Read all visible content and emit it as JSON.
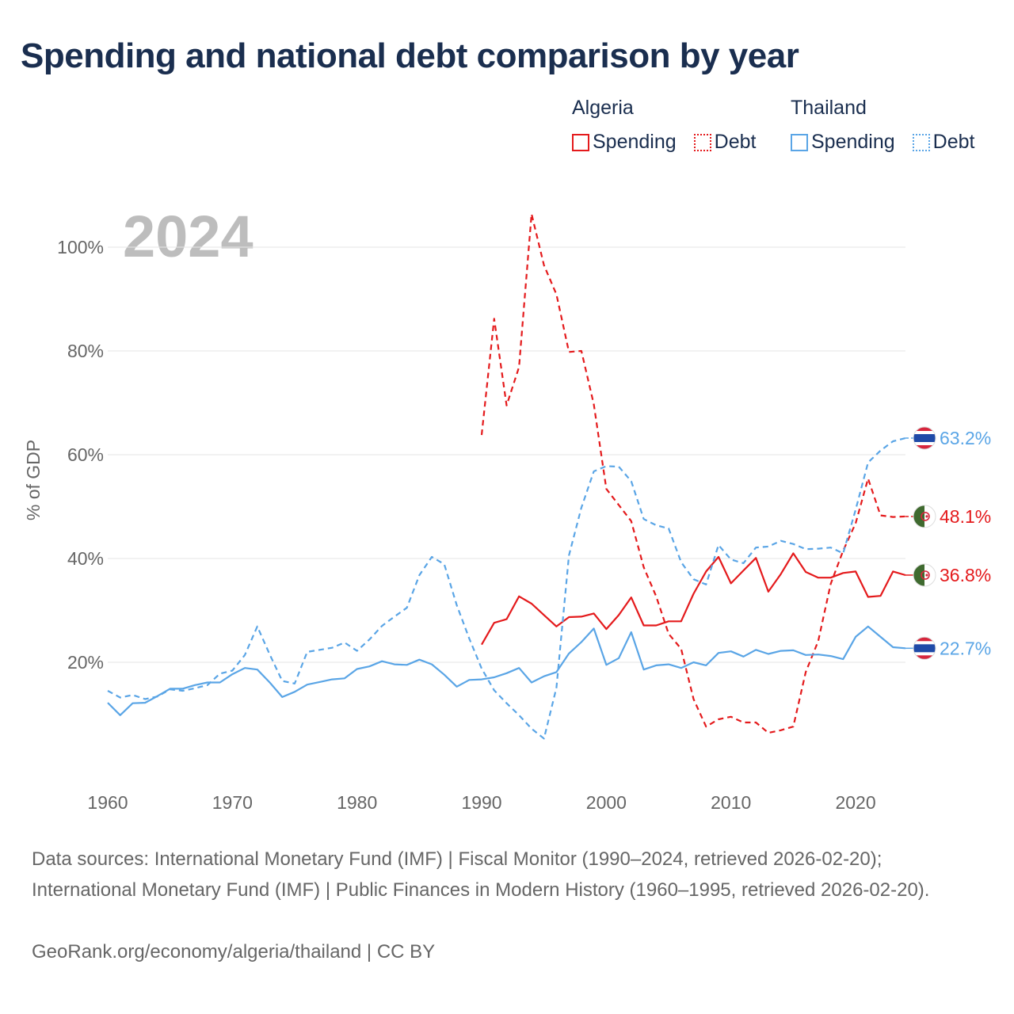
{
  "chart_data": {
    "type": "line",
    "title": "Spending and national debt comparison by year",
    "xlabel": "",
    "ylabel": "% of GDP",
    "year_watermark": "2024",
    "xlim": [
      1960,
      2024
    ],
    "ylim": [
      0,
      110
    ],
    "x_ticks": [
      1960,
      1970,
      1980,
      1990,
      2000,
      2010,
      2020
    ],
    "x_tick_labels": [
      "1960",
      "1970",
      "1980",
      "1990",
      "2000",
      "2010",
      "2020"
    ],
    "y_ticks": [
      20,
      40,
      60,
      80,
      100
    ],
    "y_tick_labels": [
      "20%",
      "40%",
      "60%",
      "80%",
      "100%"
    ],
    "grid": true,
    "legend": {
      "placement": "top-right",
      "groups": [
        {
          "country": "Algeria",
          "items": [
            {
              "label": "Spending",
              "style": "solid"
            },
            {
              "label": "Debt",
              "style": "dotted"
            }
          ]
        },
        {
          "country": "Thailand",
          "items": [
            {
              "label": "Spending",
              "style": "solid"
            },
            {
              "label": "Debt",
              "style": "dotted"
            }
          ]
        }
      ]
    },
    "series": [
      {
        "name": "Algeria Spending",
        "country": "Algeria",
        "measure": "Spending",
        "color": "#e41a1c",
        "dash": "solid",
        "x": [
          1990,
          1991,
          1992,
          1993,
          1994,
          1995,
          1996,
          1997,
          1998,
          1999,
          2000,
          2001,
          2002,
          2003,
          2004,
          2005,
          2006,
          2007,
          2008,
          2009,
          2010,
          2011,
          2012,
          2013,
          2014,
          2015,
          2016,
          2017,
          2018,
          2019,
          2020,
          2021,
          2022,
          2023,
          2024
        ],
        "values": [
          23.4,
          27.6,
          28.3,
          32.7,
          31.3,
          29.1,
          26.9,
          28.7,
          28.8,
          29.4,
          26.4,
          29.1,
          32.5,
          27.1,
          27.1,
          27.9,
          27.9,
          33.2,
          37.5,
          40.3,
          35.2,
          37.7,
          40.1,
          33.6,
          37.0,
          41.0,
          37.4,
          36.3,
          36.3,
          37.2,
          37.5,
          32.6,
          32.8,
          37.5,
          36.8
        ],
        "end_label": "36.8%"
      },
      {
        "name": "Algeria Debt",
        "country": "Algeria",
        "measure": "Debt",
        "color": "#e41a1c",
        "dash": "dashed",
        "x": [
          1990,
          1991,
          1992,
          1993,
          1994,
          1995,
          1996,
          1997,
          1998,
          1999,
          2000,
          2001,
          2002,
          2003,
          2004,
          2005,
          2006,
          2007,
          2008,
          2009,
          2010,
          2011,
          2012,
          2013,
          2014,
          2015,
          2016,
          2017,
          2018,
          2019,
          2020,
          2021,
          2022,
          2023,
          2024
        ],
        "values": [
          63.8,
          86.2,
          69.5,
          76.9,
          106.4,
          96.5,
          90.9,
          79.8,
          80.0,
          69.7,
          53.4,
          50.3,
          47.2,
          38.3,
          32.7,
          25.5,
          22.6,
          12.9,
          7.6,
          9.0,
          9.5,
          8.4,
          8.4,
          6.4,
          6.9,
          7.6,
          18.1,
          24.1,
          35.1,
          41.5,
          46.8,
          55.4,
          48.3,
          48.0,
          48.1
        ],
        "end_label": "48.1%"
      },
      {
        "name": "Thailand Spending",
        "country": "Thailand",
        "measure": "Spending",
        "color": "#5aa5e6",
        "dash": "solid",
        "x": [
          1960,
          1961,
          1962,
          1963,
          1964,
          1965,
          1966,
          1967,
          1968,
          1969,
          1970,
          1971,
          1972,
          1973,
          1974,
          1975,
          1976,
          1977,
          1978,
          1979,
          1980,
          1981,
          1982,
          1983,
          1984,
          1985,
          1986,
          1987,
          1988,
          1989,
          1990,
          1991,
          1992,
          1993,
          1994,
          1995,
          1996,
          1997,
          1998,
          1999,
          2000,
          2001,
          2002,
          2003,
          2004,
          2005,
          2006,
          2007,
          2008,
          2009,
          2010,
          2011,
          2012,
          2013,
          2014,
          2015,
          2016,
          2017,
          2018,
          2019,
          2020,
          2021,
          2022,
          2023,
          2024
        ],
        "values": [
          12.2,
          9.8,
          12.1,
          12.2,
          13.5,
          14.9,
          14.9,
          15.6,
          16.1,
          16.1,
          17.7,
          18.9,
          18.6,
          16.1,
          13.3,
          14.3,
          15.7,
          16.2,
          16.7,
          16.9,
          18.7,
          19.2,
          20.2,
          19.6,
          19.5,
          20.5,
          19.6,
          17.6,
          15.3,
          16.6,
          16.7,
          17.1,
          17.9,
          18.9,
          16.1,
          17.3,
          18.1,
          21.7,
          23.9,
          26.5,
          19.5,
          20.8,
          25.8,
          18.6,
          19.4,
          19.6,
          18.9,
          20.0,
          19.4,
          21.8,
          22.1,
          21.1,
          22.4,
          21.6,
          22.2,
          22.3,
          21.4,
          21.5,
          21.2,
          20.6,
          24.9,
          26.9,
          24.9,
          22.9,
          22.7
        ],
        "end_label": "22.7%"
      },
      {
        "name": "Thailand Debt",
        "country": "Thailand",
        "measure": "Debt",
        "color": "#5aa5e6",
        "dash": "dashed",
        "x": [
          1960,
          1961,
          1962,
          1963,
          1964,
          1965,
          1966,
          1967,
          1968,
          1969,
          1970,
          1971,
          1972,
          1973,
          1974,
          1975,
          1976,
          1977,
          1978,
          1979,
          1980,
          1981,
          1982,
          1983,
          1984,
          1985,
          1986,
          1987,
          1988,
          1989,
          1990,
          1991,
          1992,
          1993,
          1994,
          1995,
          1996,
          1997,
          1998,
          1999,
          2000,
          2001,
          2002,
          2003,
          2004,
          2005,
          2006,
          2007,
          2008,
          2009,
          2010,
          2011,
          2012,
          2013,
          2014,
          2015,
          2016,
          2017,
          2018,
          2019,
          2020,
          2021,
          2022,
          2023,
          2024
        ],
        "values": [
          14.5,
          13.2,
          13.7,
          12.9,
          13.4,
          14.8,
          14.5,
          15.0,
          15.6,
          17.8,
          18.4,
          21.4,
          26.9,
          21.5,
          16.4,
          15.9,
          22.0,
          22.4,
          22.8,
          23.8,
          22.2,
          24.4,
          27.0,
          28.8,
          30.5,
          36.8,
          40.3,
          38.9,
          31.0,
          24.6,
          18.8,
          14.6,
          12.1,
          9.8,
          7.2,
          5.3,
          15.1,
          40.6,
          49.8,
          56.8,
          57.8,
          57.7,
          54.9,
          47.6,
          46.4,
          45.8,
          39.3,
          36.0,
          35.0,
          42.6,
          39.8,
          39.1,
          42.1,
          42.3,
          43.4,
          42.8,
          41.8,
          41.9,
          42.1,
          41.0,
          49.4,
          58.5,
          60.8,
          62.6,
          63.2
        ],
        "end_label": "63.2%"
      }
    ]
  },
  "legend": {
    "algeria": {
      "country": "Algeria",
      "spending": "Spending",
      "debt": "Debt"
    },
    "thailand": {
      "country": "Thailand",
      "spending": "Spending",
      "debt": "Debt"
    }
  },
  "colors": {
    "algeria": "#e41a1c",
    "thailand": "#5aa5e6",
    "title": "#1a2e4f",
    "axis_text": "#666666",
    "watermark": "#bdbdbd",
    "grid": "#e6e6e6"
  },
  "footer": {
    "sources": "Data sources: International Monetary Fund (IMF) | Fiscal Monitor (1990–2024, retrieved 2026-02-20); International Monetary Fund (IMF) | Public Finances in Modern History (1960–1995, retrieved 2026-02-20).",
    "credit": "GeoRank.org/economy/algeria/thailand | CC BY"
  }
}
